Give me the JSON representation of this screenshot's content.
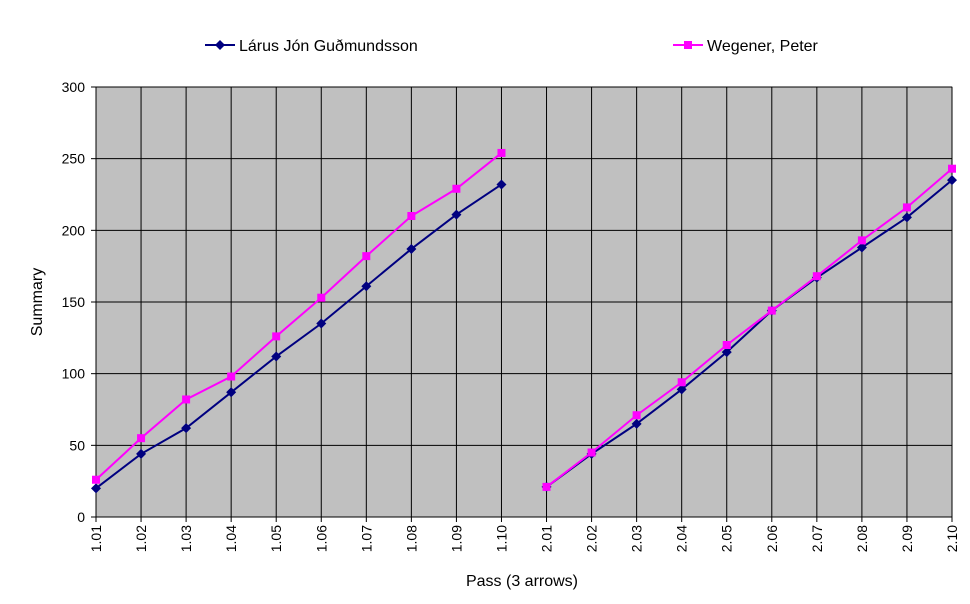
{
  "chart_data": {
    "type": "line",
    "xlabel": "Pass (3 arrows)",
    "ylabel": "Summary",
    "ylim": [
      0,
      300
    ],
    "yticks": [
      0,
      50,
      100,
      150,
      200,
      250,
      300
    ],
    "grid": true,
    "legend_position": "top",
    "plot_background": "#C0C0C0",
    "categories": [
      "1.01",
      "1.02",
      "1.03",
      "1.04",
      "1.05",
      "1.06",
      "1.07",
      "1.08",
      "1.09",
      "1.10",
      "2.01",
      "2.02",
      "2.03",
      "2.04",
      "2.05",
      "2.06",
      "2.07",
      "2.08",
      "2.09",
      "2.10"
    ],
    "series": [
      {
        "name": "Lárus Jón Guðmundsson",
        "color": "#000080",
        "marker": "diamond",
        "values": [
          20,
          44,
          62,
          87,
          112,
          135,
          161,
          187,
          211,
          232,
          21,
          44,
          65,
          89,
          115,
          144,
          167,
          188,
          209,
          235
        ]
      },
      {
        "name": "Wegener, Peter",
        "color": "#FF00FF",
        "marker": "square",
        "values": [
          26,
          55,
          82,
          98,
          126,
          153,
          182,
          210,
          229,
          254,
          21,
          45,
          71,
          94,
          120,
          144,
          168,
          193,
          216,
          243
        ]
      }
    ]
  }
}
